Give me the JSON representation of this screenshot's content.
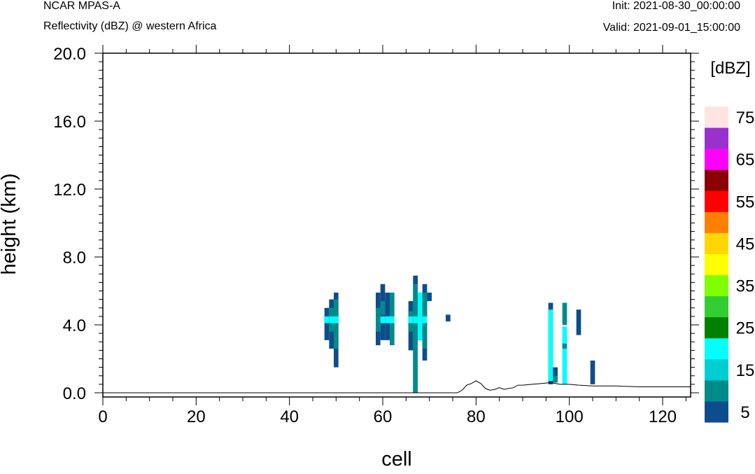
{
  "header": {
    "model": "NCAR MPAS-A",
    "field": "Reflectivity (dBZ) @ western Africa",
    "init": "Init: 2021-08-30_00:00:00",
    "valid": "Valid: 2021-09-01_15:00:00"
  },
  "chart_data": {
    "type": "heatmap",
    "xlabel": "cell",
    "ylabel": "height (km)",
    "xlim": [
      0,
      126
    ],
    "ylim": [
      -0.3,
      20
    ],
    "xticks": [
      0,
      20,
      40,
      60,
      80,
      100,
      120
    ],
    "yticks": [
      0.0,
      4.0,
      8.0,
      12.0,
      16.0,
      20.0
    ],
    "ytick_labels": [
      "0.0",
      "4.0",
      "8.0",
      "12.0",
      "16.0",
      "20.0"
    ],
    "colorbar": {
      "label": "[dBZ]",
      "tick_labels": [
        "5",
        "15",
        "25",
        "35",
        "45",
        "55",
        "65",
        "75"
      ],
      "bins": [
        {
          "from": 0,
          "to": 5,
          "color": "#0E4D8C"
        },
        {
          "from": 5,
          "to": 10,
          "color": "#008B8B"
        },
        {
          "from": 10,
          "to": 15,
          "color": "#00CED1"
        },
        {
          "from": 15,
          "to": 20,
          "color": "#00FFFF"
        },
        {
          "from": 20,
          "to": 25,
          "color": "#008000"
        },
        {
          "from": 25,
          "to": 30,
          "color": "#32CD32"
        },
        {
          "from": 30,
          "to": 35,
          "color": "#7FFF00"
        },
        {
          "from": 35,
          "to": 40,
          "color": "#FFFF00"
        },
        {
          "from": 40,
          "to": 45,
          "color": "#FFD700"
        },
        {
          "from": 45,
          "to": 50,
          "color": "#FF8000"
        },
        {
          "from": 50,
          "to": 55,
          "color": "#FF0000"
        },
        {
          "from": 55,
          "to": 60,
          "color": "#8B0000"
        },
        {
          "from": 60,
          "to": 65,
          "color": "#FF00FF"
        },
        {
          "from": 65,
          "to": 70,
          "color": "#9932CC"
        },
        {
          "from": 70,
          "to": 75,
          "color": "#FFE4E1"
        }
      ]
    },
    "cells": [
      {
        "x": 48,
        "y0": 3.1,
        "y1": 5.0,
        "dbz": 2
      },
      {
        "x": 48,
        "y0": 4.1,
        "y1": 4.5,
        "dbz": 17
      },
      {
        "x": 49,
        "y0": 2.6,
        "y1": 5.5,
        "dbz": 2
      },
      {
        "x": 49,
        "y0": 3.6,
        "y1": 5.0,
        "dbz": 7
      },
      {
        "x": 49,
        "y0": 4.1,
        "y1": 4.5,
        "dbz": 17
      },
      {
        "x": 50,
        "y0": 1.5,
        "y1": 5.9,
        "dbz": 2
      },
      {
        "x": 50,
        "y0": 2.6,
        "y1": 5.5,
        "dbz": 7
      },
      {
        "x": 50,
        "y0": 4.1,
        "y1": 4.5,
        "dbz": 17
      },
      {
        "x": 59,
        "y0": 2.8,
        "y1": 5.9,
        "dbz": 2
      },
      {
        "x": 59,
        "y0": 3.6,
        "y1": 5.0,
        "dbz": 7
      },
      {
        "x": 60,
        "y0": 3.1,
        "y1": 6.4,
        "dbz": 2
      },
      {
        "x": 60,
        "y0": 4.6,
        "y1": 5.4,
        "dbz": 7
      },
      {
        "x": 60,
        "y0": 4.1,
        "y1": 4.5,
        "dbz": 17
      },
      {
        "x": 61,
        "y0": 3.1,
        "y1": 5.9,
        "dbz": 2
      },
      {
        "x": 61,
        "y0": 4.1,
        "y1": 4.5,
        "dbz": 17
      },
      {
        "x": 62,
        "y0": 2.8,
        "y1": 5.9,
        "dbz": 7
      },
      {
        "x": 62,
        "y0": 4.1,
        "y1": 4.5,
        "dbz": 17
      },
      {
        "x": 66,
        "y0": 2.5,
        "y1": 5.4,
        "dbz": 2
      },
      {
        "x": 66,
        "y0": 3.6,
        "y1": 4.8,
        "dbz": 7
      },
      {
        "x": 66,
        "y0": 4.1,
        "y1": 4.5,
        "dbz": 17
      },
      {
        "x": 67,
        "y0": 0.0,
        "y1": 6.9,
        "dbz": 2
      },
      {
        "x": 67,
        "y0": 0.0,
        "y1": 6.4,
        "dbz": 7
      },
      {
        "x": 67,
        "y0": 4.1,
        "y1": 4.5,
        "dbz": 17
      },
      {
        "x": 68,
        "y0": 3.1,
        "y1": 5.9,
        "dbz": 2
      },
      {
        "x": 68,
        "y0": 3.1,
        "y1": 5.9,
        "dbz": 17
      },
      {
        "x": 69,
        "y0": 1.9,
        "y1": 6.4,
        "dbz": 2
      },
      {
        "x": 69,
        "y0": 2.6,
        "y1": 5.9,
        "dbz": 7
      },
      {
        "x": 69,
        "y0": 4.1,
        "y1": 4.5,
        "dbz": 17
      },
      {
        "x": 70,
        "y0": 5.4,
        "y1": 5.9,
        "dbz": 2
      },
      {
        "x": 74,
        "y0": 4.2,
        "y1": 4.6,
        "dbz": 2
      },
      {
        "x": 96,
        "y0": 0.5,
        "y1": 5.3,
        "dbz": 2
      },
      {
        "x": 96,
        "y0": 0.7,
        "y1": 4.9,
        "dbz": 17
      },
      {
        "x": 97,
        "y0": 0.6,
        "y1": 1.5,
        "dbz": 2
      },
      {
        "x": 97,
        "y0": 0.6,
        "y1": 1.0,
        "dbz": 7
      },
      {
        "x": 99,
        "y0": 4.0,
        "y1": 5.3,
        "dbz": 7
      },
      {
        "x": 99,
        "y0": 0.5,
        "y1": 3.9,
        "dbz": 17
      },
      {
        "x": 99,
        "y0": 2.6,
        "y1": 2.9,
        "dbz": 7
      },
      {
        "x": 102,
        "y0": 3.4,
        "y1": 4.9,
        "dbz": 2
      },
      {
        "x": 105,
        "y0": 0.5,
        "y1": 1.9,
        "dbz": 2
      }
    ],
    "terrain": [
      [
        0,
        0.0
      ],
      [
        76,
        0.0
      ],
      [
        77,
        0.15
      ],
      [
        78,
        0.45
      ],
      [
        79,
        0.55
      ],
      [
        80,
        0.7
      ],
      [
        81,
        0.55
      ],
      [
        82,
        0.25
      ],
      [
        83,
        0.15
      ],
      [
        84,
        0.2
      ],
      [
        85,
        0.3
      ],
      [
        86,
        0.2
      ],
      [
        87,
        0.25
      ],
      [
        88,
        0.3
      ],
      [
        89,
        0.45
      ],
      [
        90,
        0.45
      ],
      [
        92,
        0.5
      ],
      [
        94,
        0.55
      ],
      [
        96,
        0.6
      ],
      [
        98,
        0.5
      ],
      [
        100,
        0.5
      ],
      [
        102,
        0.45
      ],
      [
        105,
        0.4
      ],
      [
        110,
        0.4
      ],
      [
        115,
        0.35
      ],
      [
        120,
        0.35
      ],
      [
        126,
        0.35
      ]
    ]
  }
}
